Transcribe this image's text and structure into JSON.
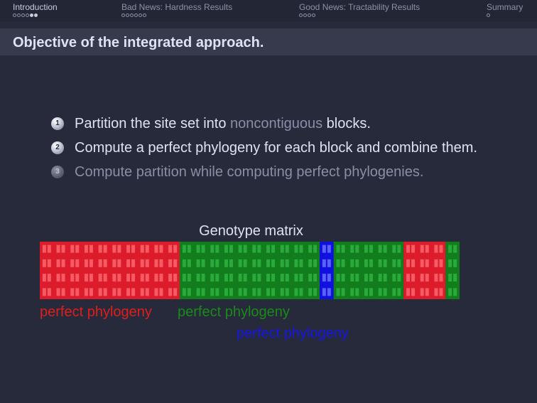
{
  "nav": {
    "sections": [
      {
        "title": "Introduction",
        "dots": [
          false,
          false,
          false,
          false,
          true,
          true
        ],
        "active": true
      },
      {
        "title": "Bad News: Hardness Results",
        "dots": [
          false,
          false,
          false,
          false,
          false,
          false
        ],
        "active": false
      },
      {
        "title": "Good News: Tractability Results",
        "dots": [
          false,
          false,
          false,
          false
        ],
        "active": false
      },
      {
        "title": "Summary",
        "dots": [
          false
        ],
        "active": false
      }
    ]
  },
  "frame": {
    "title": "Objective of the integrated approach."
  },
  "items": [
    {
      "number": "1",
      "pre": "Partition the site set into ",
      "highlight": "noncontiguous",
      "post": " blocks."
    },
    {
      "number": "2",
      "text": "Compute a perfect phylogeny for each block and combine them."
    },
    {
      "number": "3",
      "text": "Compute partition while computing perfect phylogenies."
    }
  ],
  "matrix": {
    "title": "Genotype matrix",
    "rows": 4,
    "blocks": [
      {
        "color": "red",
        "columns": 10
      },
      {
        "color": "green",
        "columns": 10
      },
      {
        "color": "blue",
        "columns": 1
      },
      {
        "color": "green",
        "columns": 5
      },
      {
        "color": "red",
        "columns": 3
      },
      {
        "color": "green",
        "columns": 3
      }
    ]
  },
  "labels": {
    "red": "perfect phylogeny",
    "green": "perfect phylogeny",
    "blue": "perfect phylogeny"
  },
  "colors": {
    "red": "#dd1c2b",
    "red_cell": "#f65a64",
    "green": "#117d1d",
    "green_cell": "#2aaa3a",
    "blue": "#1010e0",
    "blue_cell": "#5a62ff",
    "red_text": "#e01e1e",
    "green_text": "#1a8a1a",
    "blue_text": "#1616e6"
  }
}
